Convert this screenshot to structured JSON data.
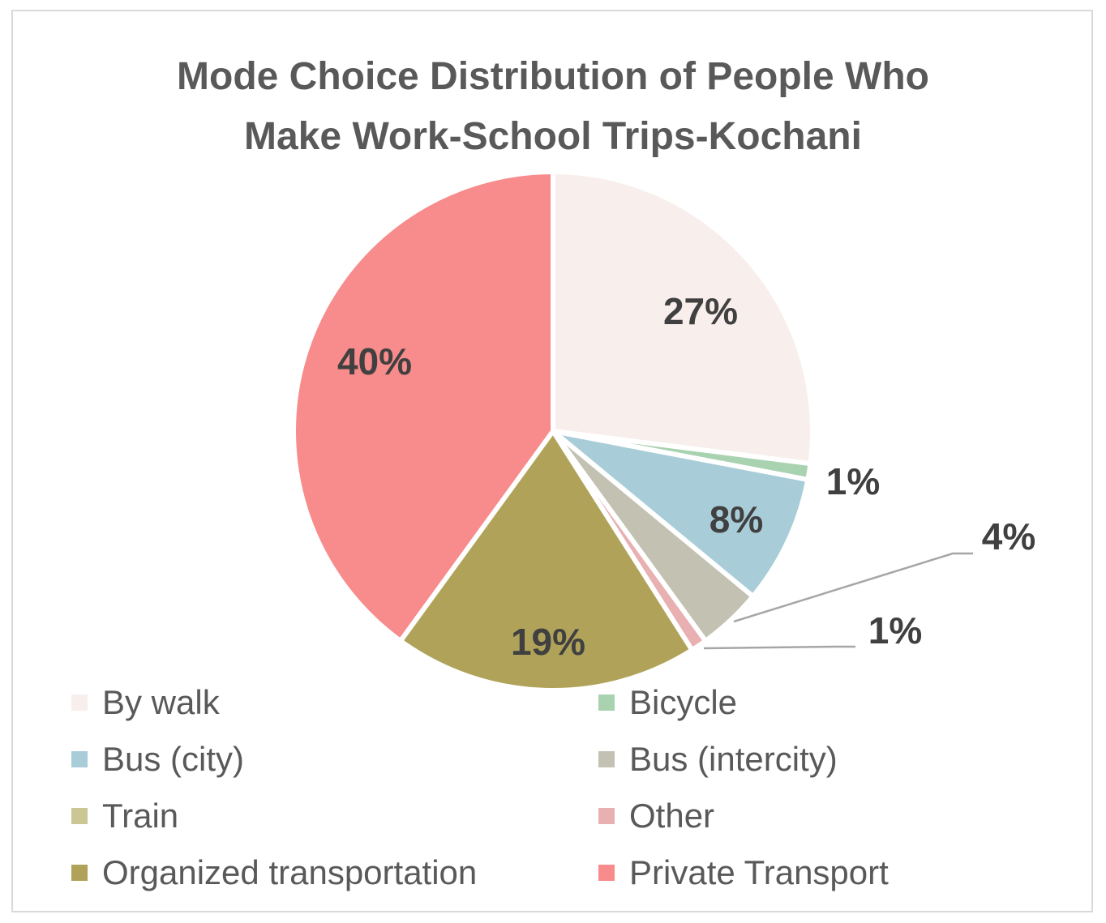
{
  "chart_data": {
    "type": "pie",
    "title": "Mode Choice Distribution of People Who Make Work-School Trips-Kochani",
    "title_lines": [
      "Mode Choice Distribution of People Who",
      "Make Work-School Trips-Kochani"
    ],
    "legend_position": "bottom",
    "slices": [
      {
        "label": "By walk",
        "value": 27,
        "data_label": "27%",
        "color": "#f8efed"
      },
      {
        "label": "Bicycle",
        "value": 1,
        "data_label": "1%",
        "color": "#a9d2b0"
      },
      {
        "label": "Bus (city)",
        "value": 8,
        "data_label": "8%",
        "color": "#a8cdd8"
      },
      {
        "label": "Bus (intercity)",
        "value": 4,
        "data_label": "4%",
        "color": "#c2c1b2"
      },
      {
        "label": "Train",
        "value": 0,
        "data_label": "",
        "color": "#cbc795"
      },
      {
        "label": "Other",
        "value": 1,
        "data_label": "1%",
        "color": "#e9b0b2"
      },
      {
        "label": "Organized transportation",
        "value": 19,
        "data_label": "19%",
        "color": "#b0a359"
      },
      {
        "label": "Private Transport",
        "value": 40,
        "data_label": "40%",
        "color": "#f88b8b"
      }
    ]
  }
}
